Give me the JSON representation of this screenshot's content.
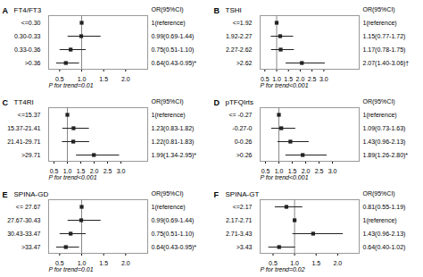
{
  "chart_data": [
    {
      "type": "forest",
      "panel_label": "A",
      "title": "FT4/FT3",
      "header": "OR(95%CI)",
      "categories": [
        "<=0.30",
        "0.30-0.33",
        "0.33-0.36",
        ">0.36"
      ],
      "values": [
        1.0,
        0.99,
        0.75,
        0.64
      ],
      "ci_low": [
        1.0,
        0.69,
        0.51,
        0.43
      ],
      "ci_high": [
        1.0,
        1.44,
        1.1,
        0.95
      ],
      "value_labels": [
        "1(reference)",
        "0.99(0.69-1.44)",
        "0.75(0.51-1.10)",
        "0.64(0.43-0.95)*"
      ],
      "data_labels": true,
      "marker": "square",
      "color": "#222222",
      "reference_line": 1.0,
      "ptrend": "P for trend=0.01",
      "xlim": [
        0.25,
        2.5
      ],
      "xticks": [
        0.5,
        {
          "value": 1.0,
          "label": "1.0"
        },
        1.5,
        {
          "value": 2.0,
          "label": "2.0"
        }
      ]
    },
    {
      "type": "forest",
      "panel_label": "B",
      "title": "TSHI",
      "header": "OR(95%CI)",
      "categories": [
        "<=1.92",
        "1.92-2.27",
        "2.27-2.62",
        ">2.62"
      ],
      "values": [
        1.0,
        1.15,
        1.17,
        2.07
      ],
      "ci_low": [
        1.0,
        0.77,
        0.78,
        1.4
      ],
      "ci_high": [
        1.0,
        1.72,
        1.75,
        3.06
      ],
      "value_labels": [
        "1(reference)",
        "1.15(0.77-1.72)",
        "1.17(0.78-1.75)",
        "2.07(1.40-3.06)†"
      ],
      "data_labels": true,
      "marker": "square",
      "color": "#222222",
      "reference_line": 1.0,
      "ptrend": "P for trend<0.001",
      "xlim": [
        0.3,
        4.5
      ],
      "xticks": [
        0.5,
        {
          "value": 1.0,
          "label": "1.0"
        },
        1.5,
        {
          "value": 2.0,
          "label": "2.0"
        },
        2.5,
        {
          "value": 3.0,
          "label": "3.0"
        }
      ]
    },
    {
      "type": "forest",
      "panel_label": "C",
      "title": "TT4RI",
      "header": "OR(95%CI)",
      "categories": [
        "<=15.37",
        "15.37-21.41",
        "21.41-29.71",
        ">29.71"
      ],
      "values": [
        1.0,
        1.23,
        1.22,
        1.99
      ],
      "ci_low": [
        1.0,
        0.83,
        0.81,
        1.34
      ],
      "ci_high": [
        1.0,
        1.82,
        1.83,
        2.95
      ],
      "value_labels": [
        "1(reference)",
        "1.23(0.83-1.82)",
        "1.22(0.81-1.83)",
        "1.99(1.34-2.95)*"
      ],
      "data_labels": true,
      "marker": "square",
      "color": "#222222",
      "reference_line": 1.0,
      "ptrend": "P for trend<0.001",
      "xlim": [
        0.3,
        4.0
      ],
      "xticks": [
        0.5,
        {
          "value": 1.0,
          "label": "1.0"
        },
        1.5,
        {
          "value": 2.0,
          "label": "2.0"
        },
        2.5,
        {
          "value": 3.0,
          "label": "3.0"
        }
      ]
    },
    {
      "type": "forest",
      "panel_label": "D",
      "title": "pTFQIrts",
      "header": "OR(95%CI)",
      "categories": [
        "<= -0.27",
        "-0.27-0",
        "0-0.26",
        ">0.26"
      ],
      "values": [
        1.0,
        1.09,
        1.43,
        1.89
      ],
      "ci_low": [
        1.0,
        0.73,
        0.96,
        1.26
      ],
      "ci_high": [
        1.0,
        1.63,
        2.13,
        2.8
      ],
      "value_labels": [
        "1(reference)",
        "1.09(0.73-1.63)",
        "1.43(0.96-2.13)",
        "1.89(1.26-2.80)*"
      ],
      "data_labels": true,
      "marker": "square",
      "color": "#222222",
      "reference_line": 1.0,
      "ptrend": "P for trend<0.001",
      "xlim": [
        0.3,
        4.0
      ],
      "xticks": [
        0.5,
        {
          "value": 1.0,
          "label": "1.0"
        },
        1.5,
        {
          "value": 2.0,
          "label": "2.0"
        },
        2.5,
        {
          "value": 3.0,
          "label": "3.0"
        }
      ]
    },
    {
      "type": "forest",
      "panel_label": "E",
      "title": "SPINA-GD",
      "header": "OR(95%CI)",
      "categories": [
        "<= 27.67",
        "27.67-30.43",
        "30.43-33.47",
        ">33.47"
      ],
      "values": [
        1.0,
        0.99,
        0.75,
        0.64
      ],
      "ci_low": [
        1.0,
        0.69,
        0.51,
        0.43
      ],
      "ci_high": [
        1.0,
        1.44,
        1.1,
        0.95
      ],
      "value_labels": [
        "1(reference)",
        "0.99(0.69-1.44)",
        "0.75(0.51-1.10)",
        "0.64(0.43-0.95)*"
      ],
      "data_labels": true,
      "marker": "square",
      "color": "#222222",
      "reference_line": 1.0,
      "ptrend": "P for trend=0.01",
      "xlim": [
        0.25,
        2.5
      ],
      "xticks": [
        0.5,
        {
          "value": 1.0,
          "label": "1.0"
        },
        1.5,
        {
          "value": 2.0,
          "label": "2.0"
        }
      ]
    },
    {
      "type": "forest",
      "panel_label": "F",
      "title": "SPINA-GT",
      "header": "OR(95%CI)",
      "categories": [
        "<=2.17",
        "2.17-2.71",
        "2.71-3.43",
        ">3.43"
      ],
      "values": [
        0.81,
        1.0,
        1.43,
        0.64
      ],
      "ci_low": [
        0.55,
        1.0,
        0.96,
        0.4
      ],
      "ci_high": [
        1.19,
        1.0,
        2.13,
        1.02
      ],
      "value_labels": [
        "0.81(0.55-1.19)",
        "1(reference)",
        "1.43(0.96-2.13)",
        "0.64(0.40-1.02)"
      ],
      "data_labels": true,
      "marker": "square",
      "color": "#222222",
      "reference_line": 1.0,
      "ptrend": "P for trend=0.02",
      "xlim": [
        0.2,
        2.5
      ],
      "xticks": [
        0.5,
        {
          "value": 1.0,
          "label": "1.0"
        },
        1.5,
        {
          "value": 2.0,
          "label": "2.0"
        }
      ]
    }
  ]
}
